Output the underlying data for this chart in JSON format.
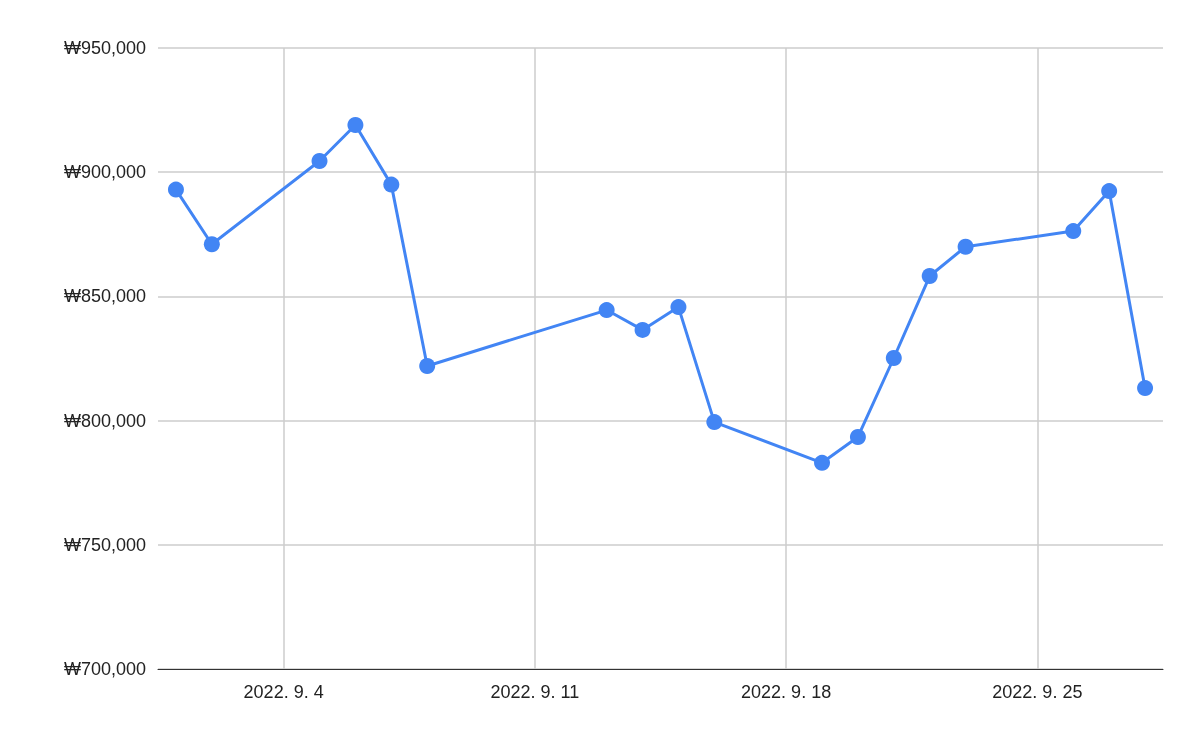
{
  "chart_data": {
    "type": "line",
    "x": [
      "2022-09-01",
      "2022-09-02",
      "2022-09-05",
      "2022-09-06",
      "2022-09-07",
      "2022-09-08",
      "2022-09-13",
      "2022-09-14",
      "2022-09-15",
      "2022-09-16",
      "2022-09-19",
      "2022-09-20",
      "2022-09-21",
      "2022-09-22",
      "2022-09-23",
      "2022-09-26",
      "2022-09-27",
      "2022-09-28"
    ],
    "series": [
      {
        "color": "#4285f4",
        "values": [
          893000,
          871000,
          904500,
          919000,
          895000,
          822000,
          844500,
          836500,
          845700,
          799400,
          783000,
          793400,
          825200,
          858200,
          870000,
          876300,
          892400,
          813100
        ]
      }
    ],
    "xlim": [
      "2022-08-31T12:00",
      "2022-09-28T12:00"
    ],
    "xticks": [
      {
        "value": "2022-09-04",
        "label": "2022. 9. 4"
      },
      {
        "value": "2022-09-11",
        "label": "2022. 9. 11"
      },
      {
        "value": "2022-09-18",
        "label": "2022. 9. 18"
      },
      {
        "value": "2022-09-25",
        "label": "2022. 9. 25"
      }
    ],
    "ylim": [
      700000,
      950000
    ],
    "yticks": [
      {
        "value": 700000,
        "label": "₩700,000"
      },
      {
        "value": 750000,
        "label": "₩750,000"
      },
      {
        "value": 800000,
        "label": "₩800,000"
      },
      {
        "value": 850000,
        "label": "₩850,000"
      },
      {
        "value": 900000,
        "label": "₩900,000"
      },
      {
        "value": 950000,
        "label": "₩950,000"
      }
    ],
    "grid": true,
    "marker": "circle",
    "line_style": "solid"
  }
}
